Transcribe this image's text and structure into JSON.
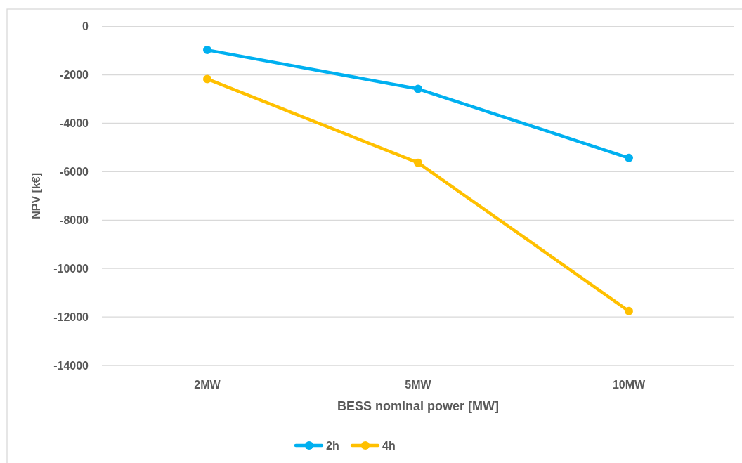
{
  "chart_data": {
    "type": "line",
    "xlabel": "BESS nominal power [MW]",
    "ylabel": "NPV [k€]",
    "categories": [
      "2MW",
      "5MW",
      "10MW"
    ],
    "series": [
      {
        "name": "2h",
        "color": "#00b0f0",
        "values": [
          -970,
          -2580,
          -5430
        ]
      },
      {
        "name": "4h",
        "color": "#ffc000",
        "values": [
          -2170,
          -5630,
          -11760
        ]
      }
    ],
    "ylim": [
      -14000,
      0
    ],
    "yticks": [
      0,
      -2000,
      -4000,
      -6000,
      -8000,
      -10000,
      -12000,
      -14000
    ],
    "grid": "y",
    "legend": "bottom",
    "marker": "circle",
    "line_style": "solid"
  }
}
